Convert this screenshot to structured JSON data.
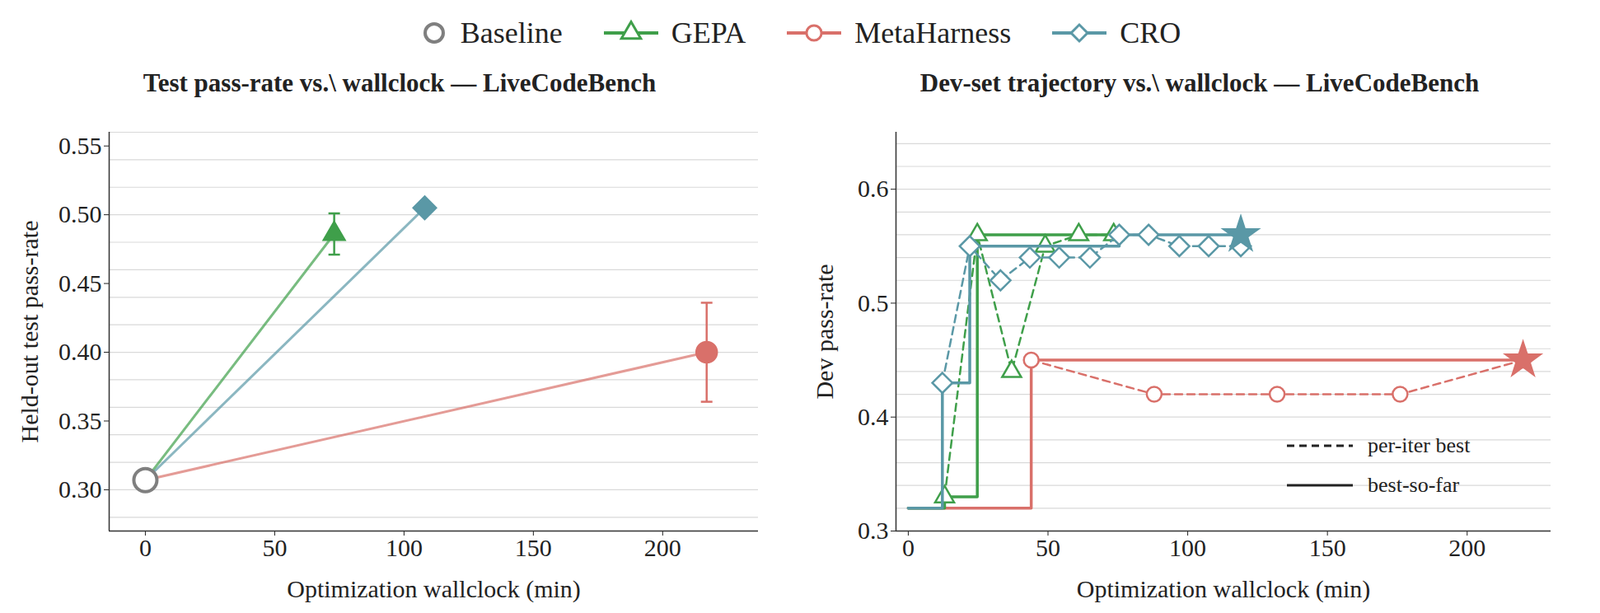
{
  "chart_data": [
    {
      "type": "scatter",
      "title": "Test pass-rate vs.\\ wallclock — LiveCodeBench",
      "x_label": "Optimization wallclock (min)",
      "y_label": "Held-out test pass-rate",
      "xlim": [
        -14,
        237
      ],
      "ylim": [
        0.27,
        0.56
      ],
      "xticks": [
        0,
        50,
        100,
        150,
        200
      ],
      "yticks": [
        {
          "value": 0.3,
          "label": "0.30"
        },
        0.35,
        {
          "value": 0.4,
          "label": "0.40"
        },
        0.45,
        {
          "value": 0.5,
          "label": "0.50"
        },
        0.55
      ],
      "grid": true,
      "legend": "top",
      "series": [
        {
          "name": "Baseline",
          "color": "#7f7f7f",
          "marker": "hollow_circle",
          "x": [
            0
          ],
          "values": [
            0.307
          ],
          "error": [
            null
          ]
        },
        {
          "name": "GEPA",
          "color": "#3f9f4a",
          "marker": "triangle",
          "line_style": "solid",
          "x": [
            73
          ],
          "values": [
            0.486
          ],
          "error": [
            0.015
          ]
        },
        {
          "name": "MetaHarness",
          "color": "#d9706a",
          "marker": "circle",
          "line_style": "solid",
          "x": [
            217
          ],
          "values": [
            0.4
          ],
          "error": [
            0.036
          ]
        },
        {
          "name": "CRO",
          "color": "#5a98a6",
          "marker": "diamond",
          "line_style": "solid",
          "x": [
            108
          ],
          "values": [
            0.505
          ],
          "error": [
            null
          ]
        }
      ]
    },
    {
      "type": "line",
      "title": "Dev-set trajectory vs.\\ wallclock — LiveCodeBench",
      "x_label": "Optimization wallclock (min)",
      "y_label": "Dev pass-rate",
      "xlim": [
        -4.4,
        230
      ],
      "ylim": [
        0.3,
        0.65
      ],
      "xticks": [
        0,
        50,
        100,
        150,
        200
      ],
      "yticks": [
        0.3,
        0.4,
        0.5,
        0.6
      ],
      "grid": true,
      "legend": "lower right",
      "legend_entries": [
        {
          "label": "per-iter best",
          "line_style": "dashed"
        },
        {
          "label": "best-so-far",
          "line_style": "solid"
        }
      ],
      "series": [
        {
          "name": "MetaHarness",
          "color": "#d9706a",
          "marker": "circle",
          "per_iter_x": [
            44,
            88,
            132,
            176,
            220
          ],
          "per_iter_values": [
            0.45,
            0.42,
            0.42,
            0.42,
            0.45
          ],
          "best_so_far_x": [
            0,
            44,
            220
          ],
          "best_so_far_values": [
            0.32,
            0.45,
            0.45
          ],
          "final_x": 220,
          "final_value": 0.45
        },
        {
          "name": "GEPA",
          "color": "#3f9f4a",
          "marker": "triangle",
          "per_iter_x": [
            13,
            24.7,
            37,
            49,
            61,
            73.5
          ],
          "per_iter_values": [
            0.33,
            0.56,
            0.44,
            0.55,
            0.56,
            0.56
          ],
          "best_so_far_x": [
            0,
            13,
            24.7,
            73.5
          ],
          "best_so_far_values": [
            0.32,
            0.33,
            0.56,
            0.56
          ],
          "final_x": null,
          "final_value": null
        },
        {
          "name": "CRO",
          "color": "#5a98a6",
          "marker": "diamond",
          "per_iter_x": [
            12.2,
            22,
            33,
            43.5,
            54,
            65,
            75.5,
            86,
            97,
            107.5,
            119
          ],
          "per_iter_values": [
            0.43,
            0.55,
            0.52,
            0.54,
            0.54,
            0.54,
            0.56,
            0.56,
            0.55,
            0.55,
            0.55
          ],
          "best_so_far_x": [
            0,
            12.2,
            22,
            75.5,
            119
          ],
          "best_so_far_values": [
            0.32,
            0.43,
            0.55,
            0.56,
            0.56
          ],
          "final_x": 119,
          "final_value": 0.56
        }
      ]
    }
  ]
}
